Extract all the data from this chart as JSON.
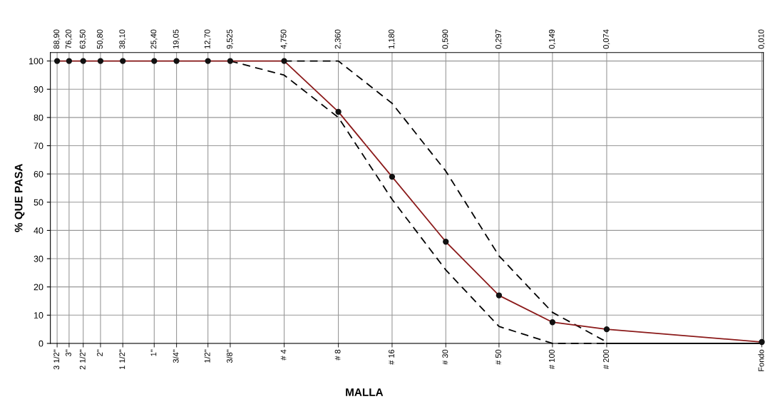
{
  "chart_data": {
    "type": "line",
    "xlabel": "MALLA",
    "ylabel": "% QUE PASA",
    "log": "x",
    "grid": true,
    "xlim": [
      97,
      0.0098
    ],
    "ylim": [
      0,
      103
    ],
    "xticks": [
      {
        "value": 88.9,
        "label": "88,90"
      },
      {
        "value": 76.2,
        "label": "76,20"
      },
      {
        "value": 63.5,
        "label": "63,50"
      },
      {
        "value": 50.8,
        "label": "50,80"
      },
      {
        "value": 38.1,
        "label": "38,10"
      },
      {
        "value": 25.4,
        "label": "25,40"
      },
      {
        "value": 19.05,
        "label": "19,05"
      },
      {
        "value": 12.7,
        "label": "12,70"
      },
      {
        "value": 9.525,
        "label": "9,525"
      },
      {
        "value": 4.75,
        "label": "4,750"
      },
      {
        "value": 2.36,
        "label": "2,360"
      },
      {
        "value": 1.18,
        "label": "1,180"
      },
      {
        "value": 0.59,
        "label": "0,590"
      },
      {
        "value": 0.297,
        "label": "0,297"
      },
      {
        "value": 0.149,
        "label": "0,149"
      },
      {
        "value": 0.074,
        "label": "0,074"
      },
      {
        "value": 0.01,
        "label": "0,010"
      }
    ],
    "annotations": [
      "3 1/2\"",
      "3\"",
      "2 1/2\"",
      "2\"",
      "1 1/2\"",
      "1\"",
      "3/4\"",
      "1/2\"",
      "3/8\"",
      "# 4",
      "# 8",
      "# 16",
      "# 30",
      "# 50",
      "# 100",
      "# 200",
      "Fondo"
    ],
    "yticks": [
      0,
      10,
      20,
      30,
      40,
      50,
      60,
      70,
      80,
      90,
      100
    ],
    "series": [
      {
        "color": "#000000",
        "line_style": "dashed",
        "marker": "none",
        "x": [
          4.75,
          2.36,
          1.18,
          0.59,
          0.297,
          0.149,
          0.074
        ],
        "values": [
          100,
          100,
          85,
          61,
          31,
          11,
          0.5
        ]
      },
      {
        "color": "#000000",
        "line_style": "dashed",
        "marker": "none",
        "x": [
          9.525,
          4.75,
          2.36,
          1.18,
          0.59,
          0.297,
          0.149,
          0.074
        ],
        "values": [
          100,
          95,
          80,
          51,
          26,
          6,
          0,
          0
        ]
      },
      {
        "color": "#000000",
        "line_style": "solid",
        "marker": "none",
        "x": [
          0.074,
          0.01
        ],
        "values": [
          0,
          0
        ]
      },
      {
        "color": "#8b1a1a",
        "line_style": "solid",
        "marker": "circle",
        "x": [
          88.9,
          76.2,
          63.5,
          50.8,
          38.1,
          25.4,
          19.05,
          12.7,
          9.525,
          4.75,
          2.36,
          1.18,
          0.59,
          0.297,
          0.149,
          0.074,
          0.01
        ],
        "values": [
          100,
          100,
          100,
          100,
          100,
          100,
          100,
          100,
          100,
          100,
          82,
          59,
          36,
          17,
          7.5,
          5,
          0.5
        ]
      }
    ]
  }
}
